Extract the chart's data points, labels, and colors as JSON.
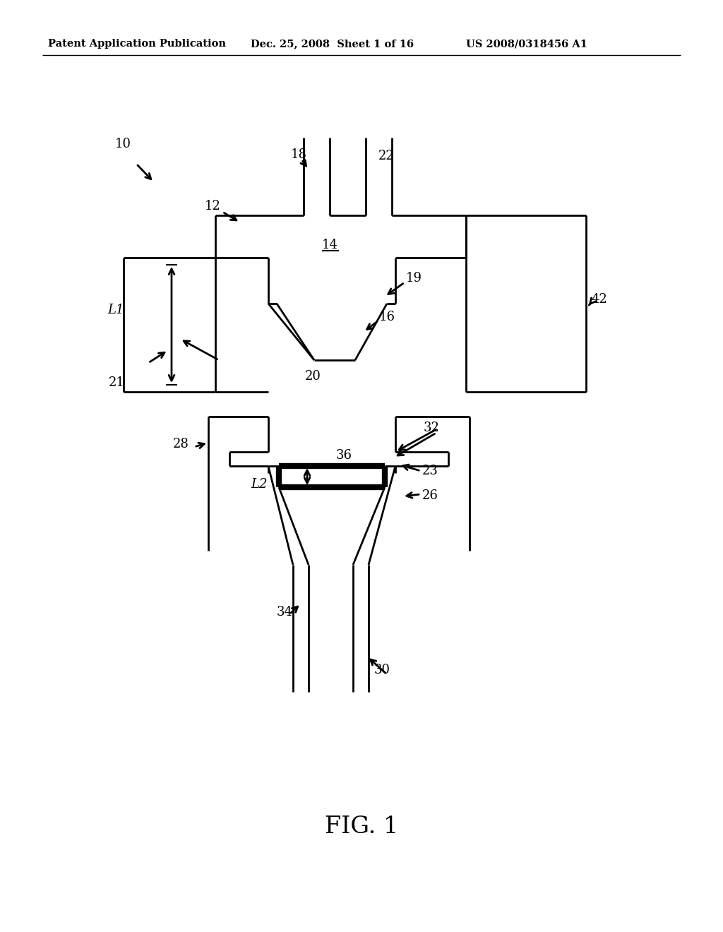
{
  "background_color": "#ffffff",
  "header_left": "Patent Application Publication",
  "header_mid": "Dec. 25, 2008  Sheet 1 of 16",
  "header_right": "US 2008/0318456 A1",
  "fig_label": "FIG. 1",
  "line_color": "#000000",
  "lw": 2.0,
  "tlw": 6.0,
  "fs": 13
}
